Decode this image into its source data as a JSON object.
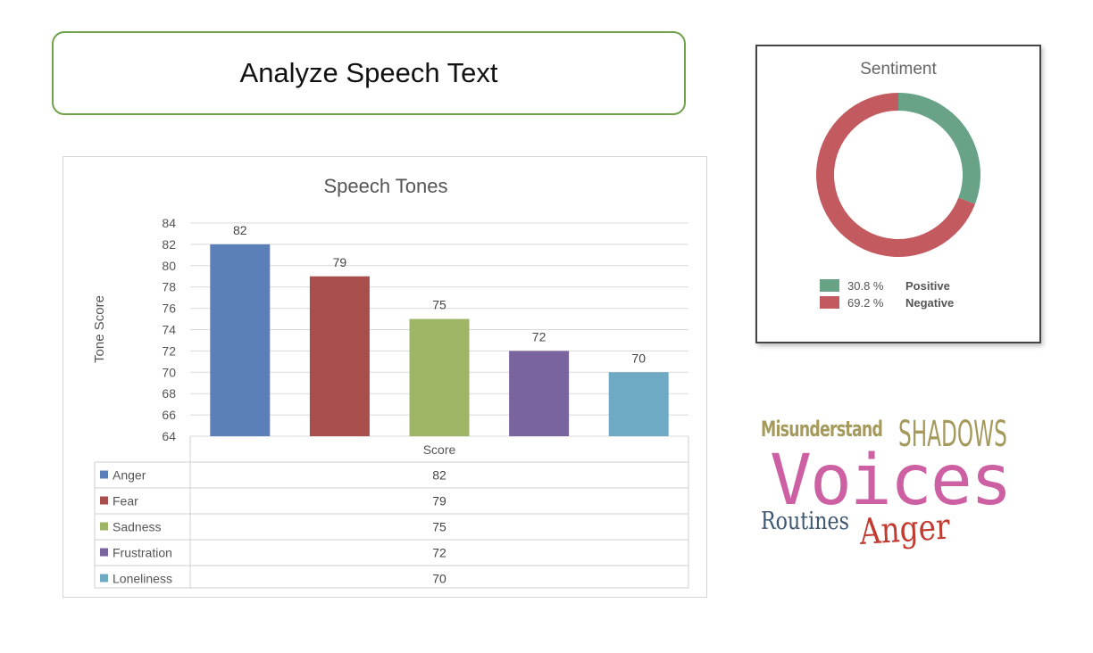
{
  "analyze_button": {
    "label": "Analyze Speech Text"
  },
  "chart_data": [
    {
      "type": "bar",
      "title": "Speech Tones",
      "ylabel": "Tone Score",
      "xlabel": "",
      "series_header": "Score",
      "ylim": [
        64,
        84
      ],
      "yticks": [
        64,
        66,
        68,
        70,
        72,
        74,
        76,
        78,
        80,
        82,
        84
      ],
      "grid": true,
      "categories": [
        "Anger",
        "Fear",
        "Sadness",
        "Frustration",
        "Loneliness"
      ],
      "values": [
        82,
        79,
        75,
        72,
        70
      ],
      "colors": [
        "#5b7fb8",
        "#a94f4b",
        "#9db564",
        "#7a64a0",
        "#6faac4"
      ],
      "data_table": true
    },
    {
      "type": "pie",
      "title": "Sentiment",
      "style": "donut",
      "slices": [
        {
          "label": "Positive",
          "percent_text": "30.8 %",
          "value": 30.8,
          "color": "#68a287"
        },
        {
          "label": "Negative",
          "percent_text": "69.2 %",
          "value": 69.2,
          "color": "#c35a5f"
        }
      ],
      "legend": "bottom"
    }
  ],
  "word_cloud": {
    "words": [
      {
        "text": "Misunderstand",
        "color": "#a59a5c"
      },
      {
        "text": "SHADOWS",
        "color": "#a59a5c"
      },
      {
        "text": "Voices",
        "color": "#cd5fa3"
      },
      {
        "text": "Routines",
        "color": "#3d5670"
      },
      {
        "text": "Anger",
        "color": "#c23b31"
      }
    ]
  }
}
